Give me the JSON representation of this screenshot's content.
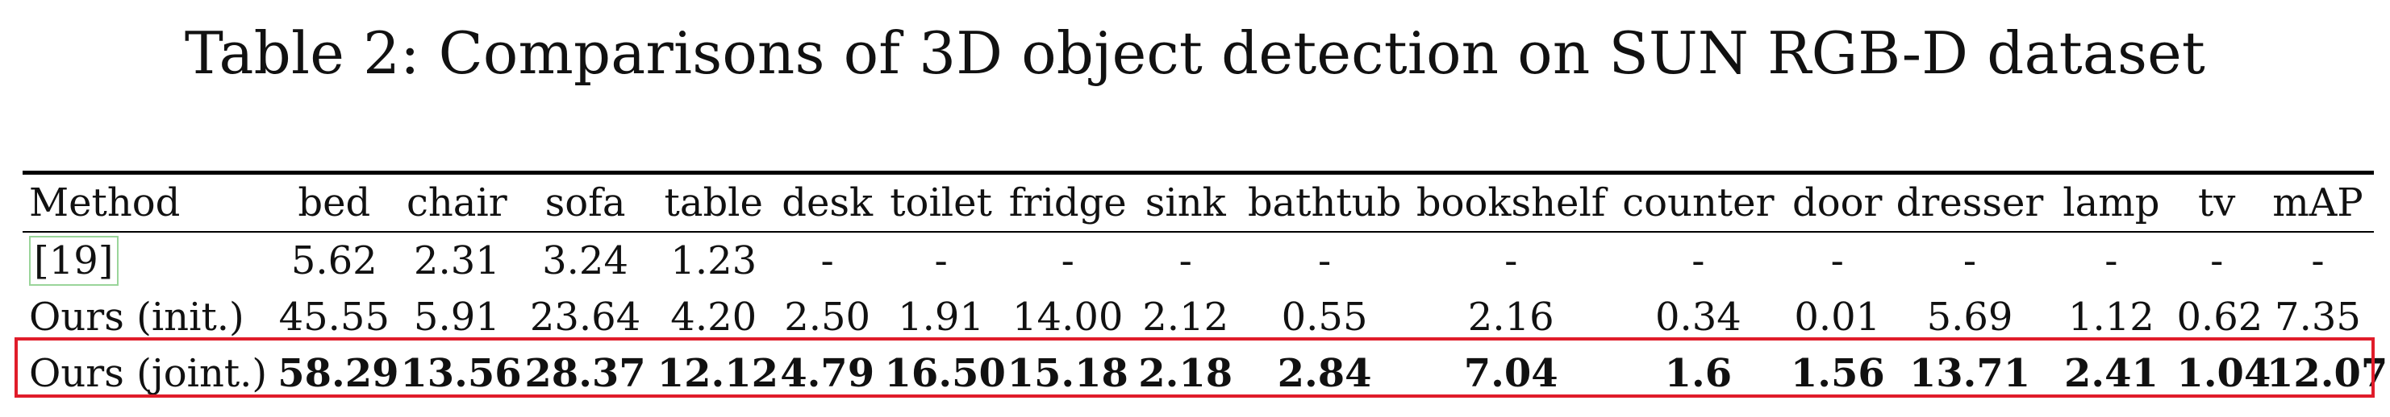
{
  "caption": "Table 2: Comparisons of 3D object detection on SUN RGB-D dataset",
  "table": {
    "headers": [
      "Method",
      "bed",
      "chair",
      "sofa",
      "table",
      "desk",
      "toilet",
      "fridge",
      "sink",
      "bathtub",
      "bookshelf",
      "counter",
      "door",
      "dresser",
      "lamp",
      "tv",
      "mAP"
    ],
    "rows": [
      {
        "method": "[19]",
        "cited": true,
        "bold": false,
        "values": [
          "5.62",
          "2.31",
          "3.24",
          "1.23",
          "-",
          "-",
          "-",
          "-",
          "-",
          "-",
          "-",
          "-",
          "-",
          "-",
          "-",
          "-"
        ]
      },
      {
        "method": "Ours (init.)",
        "cited": false,
        "bold": false,
        "values": [
          "45.55",
          "5.91",
          "23.64",
          "4.20",
          "2.50",
          "1.91",
          "14.00",
          "2.12",
          "0.55",
          "2.16",
          "0.34",
          "0.01",
          "5.69",
          "1.12",
          "0.62",
          "7.35"
        ]
      },
      {
        "method": "Ours (joint.)",
        "cited": false,
        "bold": true,
        "values": [
          "58.29",
          "13.56",
          "28.37",
          "12.12",
          "4.79",
          "16.50",
          "15.18",
          "2.18",
          "2.84",
          "7.04",
          "1.6",
          "1.56",
          "13.71",
          "2.41",
          "1.04",
          "12.07"
        ]
      }
    ],
    "highlighted_row": 2
  },
  "colors": {
    "highlight_box": "#e01c2a",
    "citation_box": "#9ad59a",
    "rule": "#000000"
  }
}
